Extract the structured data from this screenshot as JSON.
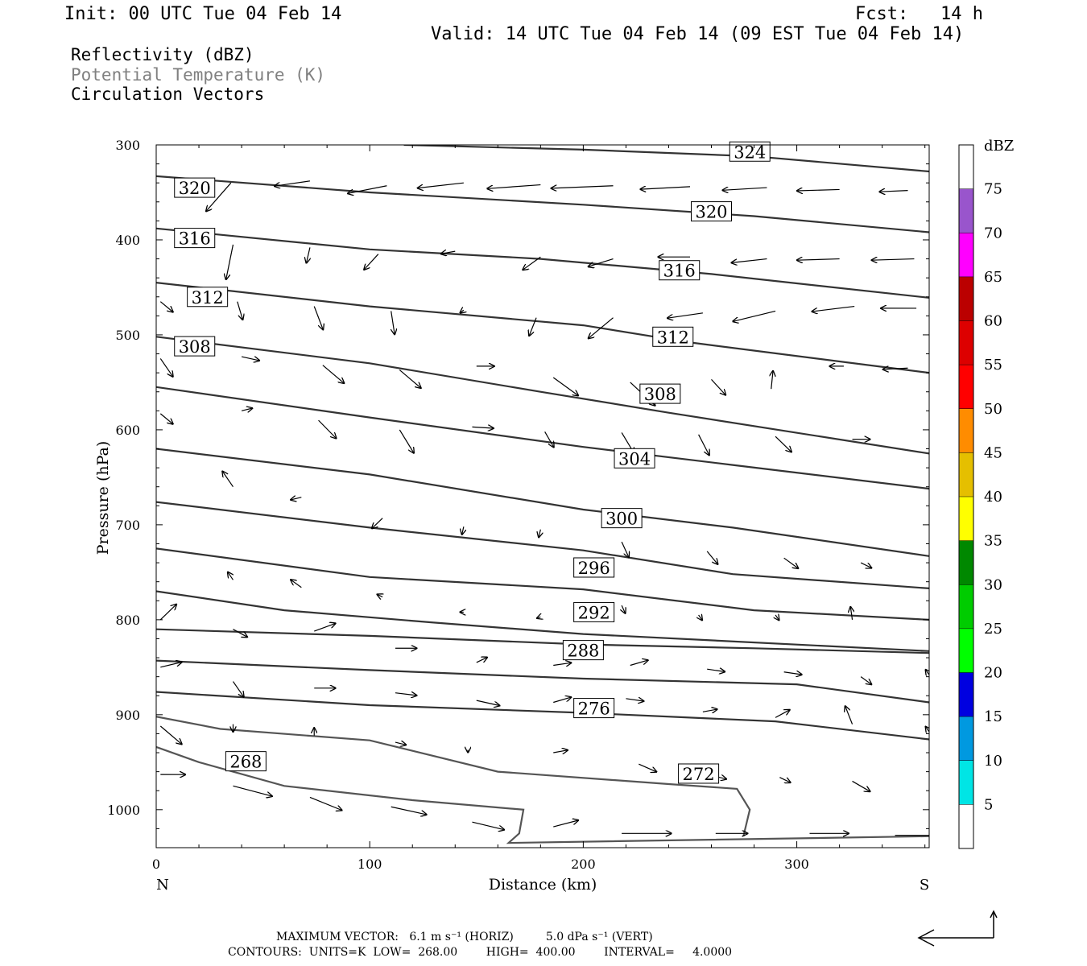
{
  "header": {
    "init": "Init: 00 UTC Tue 04 Feb 14",
    "fcst": "Fcst:   14 h",
    "valid": "Valid: 14 UTC Tue 04 Feb 14 (09 EST Tue 04 Feb 14)"
  },
  "legend": {
    "line1": "Reflectivity (dBZ)",
    "line2": "Potential Temperature (K)",
    "line3": "Circulation Vectors"
  },
  "footer": {
    "vector_line": "MAXIMUM VECTOR:   6.1 m s⁻¹ (HORIZ)         5.0 dPa s⁻¹ (VERT)",
    "contour_line": "CONTOURS:  UNITS=K  LOW=  268.00        HIGH=  400.00        INTERVAL=     4.0000"
  },
  "chart_data": {
    "type": "cross-section contour + vector plot",
    "xlabel": "Distance (km)",
    "ylabel": "Pressure (hPa)",
    "x_ticks": [
      0,
      100,
      200,
      300
    ],
    "x_end_labels": {
      "left": "N",
      "right": "S"
    },
    "xlim": [
      0,
      362
    ],
    "y_ticks": [
      300,
      400,
      500,
      600,
      700,
      800,
      900,
      1000
    ],
    "ylim": [
      300,
      1040
    ],
    "y_inverted": true,
    "colorbar": {
      "unit": "dBZ",
      "labels": [
        5,
        10,
        15,
        20,
        25,
        30,
        35,
        40,
        45,
        50,
        55,
        60,
        65,
        70,
        75
      ],
      "colors": [
        "#ffffff",
        "#00e5e5",
        "#0099e0",
        "#0000e0",
        "#00ff00",
        "#00cc00",
        "#008800",
        "#ffff00",
        "#e5bf00",
        "#ff8c00",
        "#ff0000",
        "#dd0000",
        "#bb0000",
        "#ff00ff",
        "#9955cc",
        "#ffffff"
      ]
    },
    "theta_contours": [
      {
        "value": 324,
        "label": "324",
        "points": [
          [
            116,
            300
          ],
          [
            200,
            305
          ],
          [
            280,
            312
          ],
          [
            362,
            328
          ]
        ]
      },
      {
        "value": 320,
        "label": "320",
        "points": [
          [
            0,
            333
          ],
          [
            100,
            350
          ],
          [
            200,
            363
          ],
          [
            280,
            375
          ],
          [
            362,
            392
          ]
        ]
      },
      {
        "value": 316,
        "label": "316",
        "points": [
          [
            0,
            388
          ],
          [
            100,
            410
          ],
          [
            180,
            420
          ],
          [
            260,
            436
          ],
          [
            362,
            461
          ]
        ]
      },
      {
        "value": 312,
        "label": "312",
        "points": [
          [
            0,
            445
          ],
          [
            100,
            470
          ],
          [
            200,
            490
          ],
          [
            250,
            508
          ],
          [
            362,
            540
          ]
        ]
      },
      {
        "value": 308,
        "label": "308",
        "points": [
          [
            0,
            502
          ],
          [
            100,
            530
          ],
          [
            180,
            560
          ],
          [
            240,
            582
          ],
          [
            362,
            625
          ]
        ]
      },
      {
        "value": 304,
        "label": "304",
        "points": [
          [
            0,
            555
          ],
          [
            100,
            587
          ],
          [
            200,
            618
          ],
          [
            270,
            637
          ],
          [
            362,
            662
          ]
        ]
      },
      {
        "value": 300,
        "label": "300",
        "points": [
          [
            0,
            620
          ],
          [
            100,
            647
          ],
          [
            200,
            684
          ],
          [
            270,
            703
          ],
          [
            362,
            733
          ]
        ]
      },
      {
        "value": 296,
        "label": "296",
        "points": [
          [
            0,
            676
          ],
          [
            100,
            703
          ],
          [
            200,
            727
          ],
          [
            270,
            752
          ],
          [
            362,
            767
          ]
        ]
      },
      {
        "value": 292,
        "label": "292",
        "points": [
          [
            0,
            725
          ],
          [
            100,
            755
          ],
          [
            200,
            768
          ],
          [
            280,
            790
          ],
          [
            362,
            800
          ]
        ]
      },
      {
        "value": 288,
        "label": "288",
        "points": [
          [
            0,
            770
          ],
          [
            60,
            790
          ],
          [
            130,
            803
          ],
          [
            200,
            815
          ],
          [
            362,
            833
          ]
        ]
      },
      {
        "value": 284,
        "label": "",
        "points": [
          [
            0,
            810
          ],
          [
            100,
            817
          ],
          [
            200,
            826
          ],
          [
            280,
            830
          ],
          [
            362,
            835
          ]
        ]
      },
      {
        "value": 280,
        "label": "",
        "points": [
          [
            0,
            843
          ],
          [
            100,
            853
          ],
          [
            200,
            862
          ],
          [
            300,
            868
          ],
          [
            362,
            887
          ]
        ]
      },
      {
        "value": 276,
        "label": "276",
        "points": [
          [
            0,
            876
          ],
          [
            100,
            890
          ],
          [
            200,
            898
          ],
          [
            290,
            907
          ],
          [
            362,
            926
          ]
        ]
      },
      {
        "value": 272,
        "label": "272",
        "points": [
          [
            0,
            902
          ],
          [
            30,
            915
          ],
          [
            100,
            927
          ],
          [
            160,
            960
          ],
          [
            240,
            973
          ],
          [
            272,
            978
          ],
          [
            278,
            1000
          ],
          [
            275,
            1028
          ]
        ]
      },
      {
        "value": 268,
        "label": "268",
        "points": [
          [
            0,
            934
          ],
          [
            20,
            950
          ],
          [
            60,
            975
          ],
          [
            120,
            990
          ],
          [
            172,
            1000
          ],
          [
            170,
            1025
          ],
          [
            165,
            1035
          ],
          [
            362,
            1028
          ]
        ]
      }
    ],
    "vectors": [
      [
        35,
        340,
        -14,
        22
      ],
      [
        72,
        338,
        -20,
        4
      ],
      [
        108,
        343,
        -22,
        6
      ],
      [
        144,
        340,
        -26,
        4
      ],
      [
        180,
        342,
        -30,
        3
      ],
      [
        214,
        343,
        -35,
        2
      ],
      [
        250,
        344,
        -28,
        2
      ],
      [
        286,
        345,
        -25,
        2
      ],
      [
        320,
        347,
        -24,
        1
      ],
      [
        352,
        348,
        -16,
        1
      ],
      [
        36,
        405,
        -4,
        27
      ],
      [
        72,
        408,
        -2,
        12
      ],
      [
        104,
        415,
        -8,
        12
      ],
      [
        140,
        412,
        -8,
        2
      ],
      [
        180,
        418,
        -10,
        10
      ],
      [
        214,
        420,
        -14,
        6
      ],
      [
        250,
        418,
        -18,
        0
      ],
      [
        286,
        420,
        -20,
        3
      ],
      [
        320,
        420,
        -24,
        1
      ],
      [
        355,
        420,
        -24,
        1
      ],
      [
        2,
        465,
        7,
        8
      ],
      [
        38,
        465,
        3,
        14
      ],
      [
        74,
        470,
        5,
        18
      ],
      [
        110,
        475,
        2,
        18
      ],
      [
        144,
        474,
        -2,
        2
      ],
      [
        178,
        482,
        -4,
        14
      ],
      [
        214,
        482,
        -14,
        16
      ],
      [
        256,
        477,
        -20,
        4
      ],
      [
        290,
        475,
        -24,
        8
      ],
      [
        327,
        470,
        -24,
        4
      ],
      [
        356,
        472,
        -20,
        0
      ],
      [
        2,
        525,
        7,
        14
      ],
      [
        40,
        523,
        10,
        3
      ],
      [
        78,
        532,
        12,
        14
      ],
      [
        114,
        537,
        12,
        14
      ],
      [
        150,
        533,
        10,
        0
      ],
      [
        186,
        545,
        14,
        14
      ],
      [
        222,
        550,
        14,
        18
      ],
      [
        260,
        547,
        8,
        12
      ],
      [
        288,
        557,
        1,
        -14
      ],
      [
        322,
        533,
        -8,
        0
      ],
      [
        352,
        535,
        -14,
        1
      ],
      [
        2,
        583,
        7,
        8
      ],
      [
        40,
        580,
        6,
        -2
      ],
      [
        76,
        590,
        10,
        14
      ],
      [
        114,
        600,
        8,
        18
      ],
      [
        148,
        597,
        12,
        1
      ],
      [
        182,
        602,
        5,
        12
      ],
      [
        218,
        603,
        7,
        16
      ],
      [
        254,
        605,
        6,
        16
      ],
      [
        290,
        607,
        9,
        12
      ],
      [
        326,
        610,
        10,
        0
      ],
      [
        36,
        660,
        -6,
        -12
      ],
      [
        68,
        671,
        -6,
        2
      ],
      [
        106,
        693,
        -6,
        8
      ],
      [
        144,
        702,
        -1,
        6
      ],
      [
        180,
        705,
        -1,
        6
      ],
      [
        218,
        718,
        4,
        12
      ],
      [
        258,
        728,
        6,
        10
      ],
      [
        294,
        735,
        8,
        8
      ],
      [
        330,
        740,
        6,
        4
      ],
      [
        36,
        758,
        -3,
        -6
      ],
      [
        68,
        766,
        -6,
        -6
      ],
      [
        106,
        776,
        -3,
        -2
      ],
      [
        144,
        792,
        -2,
        0
      ],
      [
        180,
        797,
        -2,
        1
      ],
      [
        218,
        785,
        2,
        6
      ],
      [
        254,
        795,
        2,
        4
      ],
      [
        290,
        795,
        2,
        4
      ],
      [
        326,
        800,
        -1,
        -10
      ],
      [
        2,
        800,
        9,
        -12
      ],
      [
        36,
        810,
        8,
        6
      ],
      [
        74,
        812,
        12,
        -6
      ],
      [
        112,
        830,
        12,
        0
      ],
      [
        150,
        845,
        6,
        -4
      ],
      [
        186,
        848,
        10,
        -2
      ],
      [
        222,
        848,
        10,
        -4
      ],
      [
        258,
        852,
        10,
        2
      ],
      [
        294,
        855,
        10,
        2
      ],
      [
        330,
        860,
        6,
        6
      ],
      [
        362,
        858,
        -2,
        -4
      ],
      [
        2,
        850,
        12,
        -4
      ],
      [
        36,
        865,
        6,
        12
      ],
      [
        74,
        872,
        12,
        0
      ],
      [
        112,
        877,
        12,
        2
      ],
      [
        150,
        885,
        13,
        4
      ],
      [
        186,
        887,
        10,
        -4
      ],
      [
        220,
        883,
        10,
        2
      ],
      [
        256,
        897,
        8,
        -2
      ],
      [
        290,
        903,
        8,
        -6
      ],
      [
        326,
        910,
        -4,
        -14
      ],
      [
        362,
        918,
        -2,
        -4
      ],
      [
        2,
        912,
        12,
        14
      ],
      [
        36,
        910,
        0,
        6
      ],
      [
        74,
        922,
        0,
        -6
      ],
      [
        112,
        929,
        6,
        2
      ],
      [
        146,
        937,
        0,
        2
      ],
      [
        186,
        940,
        8,
        -2
      ],
      [
        226,
        952,
        10,
        6
      ],
      [
        262,
        965,
        6,
        2
      ],
      [
        292,
        966,
        6,
        4
      ],
      [
        326,
        970,
        10,
        8
      ],
      [
        2,
        963,
        14,
        0
      ],
      [
        36,
        975,
        22,
        8
      ],
      [
        72,
        987,
        18,
        10
      ],
      [
        110,
        997,
        20,
        6
      ],
      [
        148,
        1013,
        18,
        6
      ],
      [
        186,
        1018,
        14,
        -5
      ],
      [
        218,
        1025,
        28,
        0
      ],
      [
        262,
        1025,
        18,
        0
      ],
      [
        306,
        1025,
        22,
        0
      ],
      [
        346,
        1027,
        25,
        0
      ]
    ]
  }
}
